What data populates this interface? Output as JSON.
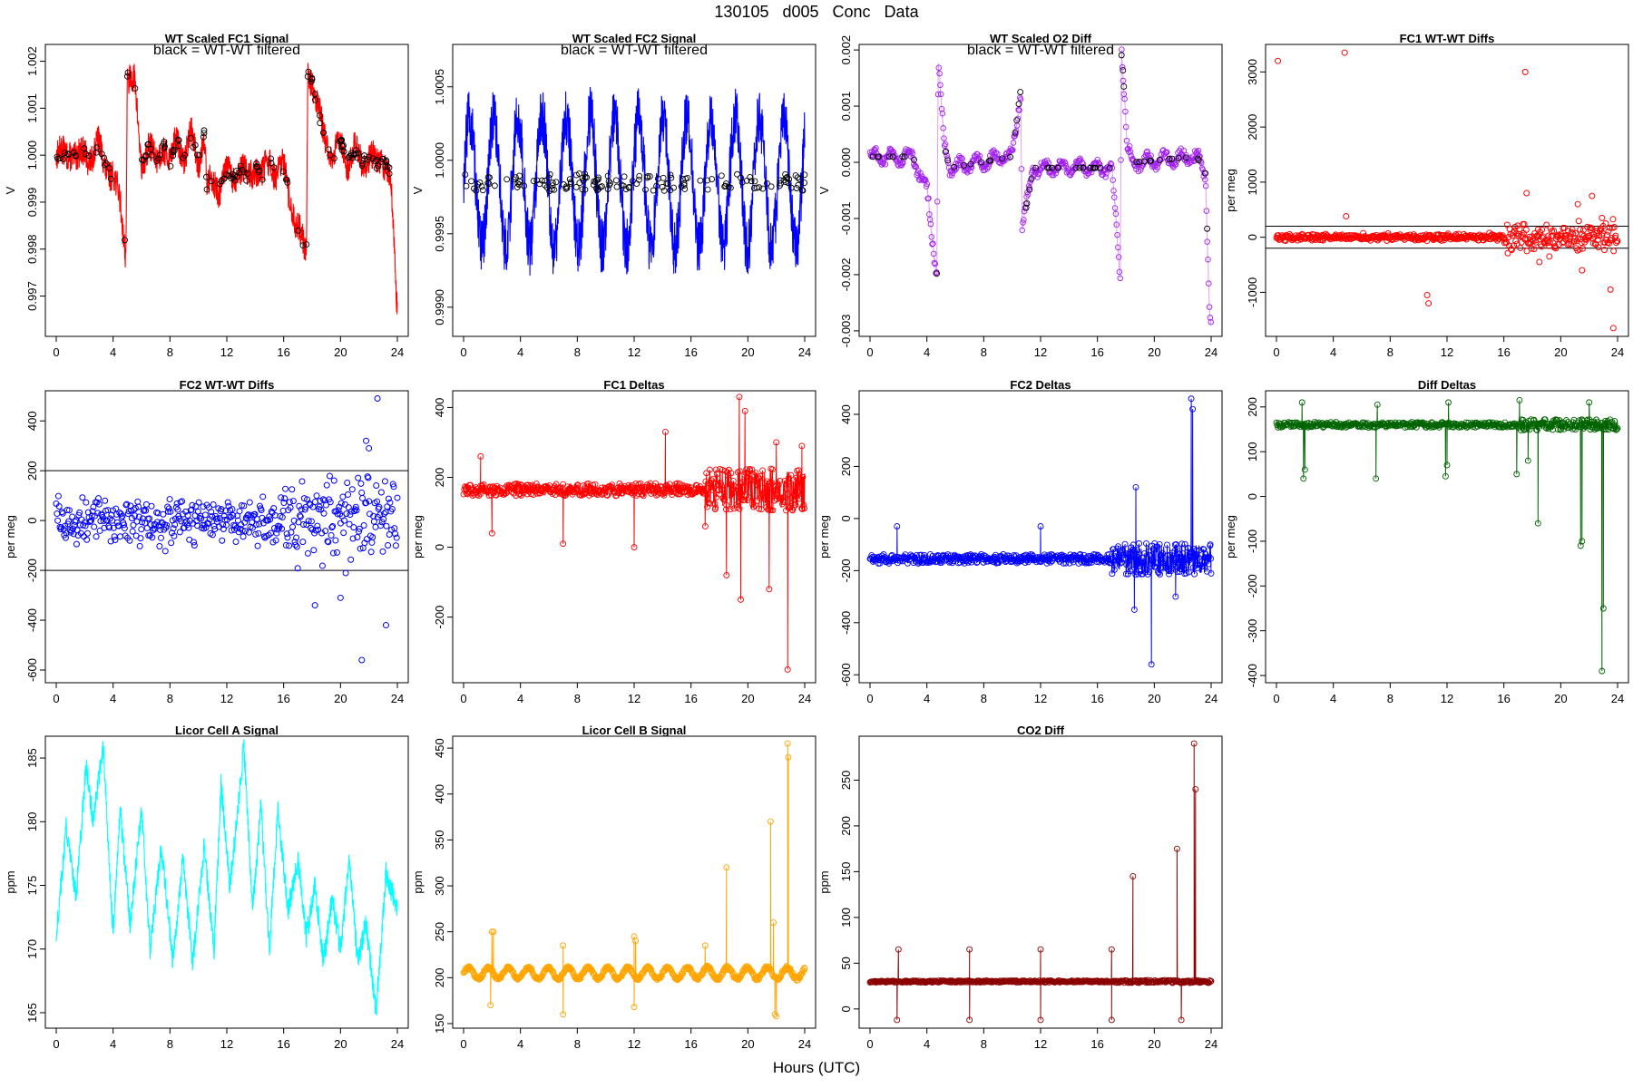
{
  "header": {
    "title": "130105    d005    Conc Data"
  },
  "footer": {
    "xlabel": "Hours (UTC)"
  },
  "chart_data": [
    {
      "type": "line",
      "title": "WT Scaled FC1 Signal",
      "annotation": "black = WT-WT filtered",
      "ylabel": "V",
      "xlim": [
        0,
        24
      ],
      "ylim": [
        0.9962,
        1.0023
      ],
      "xticks": [
        0,
        4,
        8,
        12,
        16,
        20,
        24
      ],
      "yticks": [
        0.997,
        0.998,
        0.999,
        1.0,
        1.001,
        1.002
      ],
      "ytick_labels": [
        "0.997",
        "0.998",
        "0.999",
        "1.000",
        "1.001",
        "1.002"
      ],
      "color": "#ff0000",
      "style": "dense",
      "marker_color": "#000000",
      "key_x": [
        0,
        0.5,
        1,
        1.5,
        2,
        2.5,
        3,
        3.5,
        4,
        4.5,
        4.9,
        5.0,
        5.5,
        6,
        6.5,
        7,
        7.5,
        8,
        8.5,
        9,
        9.5,
        10,
        10.4,
        10.6,
        11,
        11.5,
        12,
        12.5,
        13,
        13.5,
        14,
        14.5,
        15,
        15.5,
        16,
        16.5,
        17,
        17.6,
        17.7,
        18,
        18.5,
        19,
        19.5,
        20,
        20.5,
        21,
        21.5,
        22,
        22.5,
        23,
        23.5,
        23.8,
        24
      ],
      "key_y": [
        0.99995,
        1.0,
        1.00012,
        0.99985,
        1.0001,
        0.99995,
        1.0002,
        0.9998,
        0.9995,
        0.999,
        0.99795,
        1.0017,
        1.0015,
        0.9998,
        1.0002,
        0.9998,
        1.0003,
        0.9998,
        1.0004,
        0.9999,
        1.0004,
        0.9999,
        1.0005,
        0.9992,
        0.9995,
        0.9993,
        0.9996,
        0.9995,
        0.9997,
        0.9995,
        0.9998,
        0.9995,
        0.9999,
        0.9996,
        0.9997,
        0.999,
        0.9984,
        0.9979,
        1.0019,
        1.0016,
        1.0008,
        1.0003,
        0.9999,
        1.0003,
        0.9999,
        1.0001,
        0.99985,
        1.0,
        0.9998,
        0.99995,
        0.9996,
        0.9978,
        0.9966
      ],
      "noise": 0.00032,
      "wave_amp": 0.00015,
      "wave_period": 1.3
    },
    {
      "type": "line",
      "title": "WT Scaled FC2 Signal",
      "annotation": "black = WT-WT filtered",
      "ylabel": "V",
      "xlim": [
        0,
        24
      ],
      "ylim": [
        0.99882,
        1.00077
      ],
      "xticks": [
        0,
        4,
        8,
        12,
        16,
        20,
        24
      ],
      "yticks": [
        0.999,
        0.9995,
        1.0,
        1.0005
      ],
      "ytick_labels": [
        "0.9990",
        "0.9995",
        "1.0000",
        "1.0005"
      ],
      "color": "#0000ff",
      "style": "dense",
      "marker_color": "#000000",
      "key_x": [
        0,
        24
      ],
      "key_y": [
        0.99985,
        0.99985
      ],
      "noise": 0.0002,
      "wave_amp": 0.00045,
      "wave_period": 1.7
    },
    {
      "type": "line",
      "title": "WT Scaled O2 Diff",
      "annotation": "black = WT-WT filtered",
      "ylabel": "V",
      "xlim": [
        0,
        24
      ],
      "ylim": [
        -0.00305,
        0.00205
      ],
      "xticks": [
        0,
        4,
        8,
        12,
        16,
        20,
        24
      ],
      "yticks": [
        -0.003,
        -0.002,
        -0.001,
        0.0,
        0.001,
        0.002
      ],
      "ytick_labels": [
        "-0.003",
        "-0.002",
        "-0.001",
        "0.000",
        "0.001",
        "0.002"
      ],
      "color": "#a020f0",
      "style": "markers",
      "marker_color": "#a020f0",
      "key_x": [
        0,
        3,
        4,
        4.7,
        4.8,
        5.2,
        5.6,
        10,
        10.6,
        10.7,
        11.5,
        17,
        17.6,
        17.7,
        18.1,
        18.5,
        23,
        23.6,
        23.9,
        24
      ],
      "key_y": [
        0.0001,
        0.0001,
        -0.0005,
        -0.002,
        0.0018,
        0.0003,
        -0.0001,
        0.0001,
        0.0013,
        -0.0012,
        -0.0001,
        -0.0001,
        -0.002,
        0.0021,
        0.0002,
        0.0,
        0.0001,
        -0.0002,
        -0.0027,
        -0.0029
      ],
      "noise": 8e-05,
      "wave_amp": 0.0001,
      "wave_period": 1.2
    },
    {
      "type": "scatter",
      "title": "FC1 WT-WT Diffs",
      "ylabel": "per meg",
      "xlim": [
        0,
        24
      ],
      "ylim": [
        -1750,
        3450
      ],
      "xticks": [
        0,
        4,
        8,
        12,
        16,
        20,
        24
      ],
      "yticks": [
        -1000,
        0,
        1000,
        2000,
        3000
      ],
      "ytick_labels": [
        "-1000",
        "0",
        "1000",
        "2000",
        "3000"
      ],
      "hlines": [
        200,
        -200
      ],
      "color": "#ff0000",
      "style": "scatter",
      "n_points": 520,
      "base": 0,
      "spread": 45,
      "spread_late": 200,
      "outliers_x": [
        0.1,
        4.8,
        4.9,
        10.6,
        10.7,
        17.5,
        17.6,
        21.2,
        22.2,
        22.9,
        23.5,
        23.7,
        18.5,
        19.2,
        21.5
      ],
      "outliers_y": [
        3200,
        3350,
        380,
        -1050,
        -1200,
        3000,
        800,
        600,
        750,
        350,
        -950,
        -1650,
        -450,
        -350,
        -600
      ]
    },
    {
      "type": "scatter",
      "title": "FC2 WT-WT Diffs",
      "ylabel": "per meg",
      "xlim": [
        0,
        24
      ],
      "ylim": [
        -640,
        510
      ],
      "xticks": [
        0,
        4,
        8,
        12,
        16,
        20,
        24
      ],
      "yticks": [
        -600,
        -400,
        -200,
        0,
        200,
        400
      ],
      "ytick_labels": [
        "-600",
        "-400",
        "-200",
        "0",
        "200",
        "400"
      ],
      "hlines": [
        200,
        -200
      ],
      "color": "#0000ff",
      "style": "scatter",
      "n_points": 470,
      "base": 0,
      "spread": 70,
      "spread_late": 140,
      "outliers_x": [
        22.6,
        21.5,
        22.0,
        20.0,
        23.2,
        21.8,
        18.2
      ],
      "outliers_y": [
        490,
        -560,
        290,
        -310,
        -420,
        320,
        -340
      ]
    },
    {
      "type": "line",
      "title": "FC1 Deltas",
      "ylabel": "per meg",
      "xlim": [
        0,
        24
      ],
      "ylim": [
        -380,
        440
      ],
      "xticks": [
        0,
        4,
        8,
        12,
        16,
        20,
        24
      ],
      "yticks": [
        -200,
        0,
        200,
        400
      ],
      "ytick_labels": [
        "-200",
        "0",
        "200",
        "400"
      ],
      "color": "#ff0000",
      "style": "linemarkers",
      "n_points": 900,
      "base": 165,
      "spread": 18,
      "spread_late": 60,
      "dips_x": [
        2.0,
        7.0,
        12.0,
        17.0,
        18.5,
        19.5,
        21.5,
        22.8
      ],
      "dips_y": [
        40,
        10,
        0,
        60,
        -80,
        -150,
        -120,
        -350
      ],
      "spikes_x": [
        1.2,
        14.2,
        19.4,
        19.8,
        22.0,
        23.8
      ],
      "spikes_y": [
        260,
        330,
        430,
        390,
        300,
        290
      ]
    },
    {
      "type": "line",
      "title": "FC2 Deltas",
      "ylabel": "per meg",
      "xlim": [
        0,
        24
      ],
      "ylim": [
        -620,
        480
      ],
      "xticks": [
        0,
        4,
        8,
        12,
        16,
        20,
        24
      ],
      "yticks": [
        -600,
        -400,
        -200,
        0,
        200,
        400
      ],
      "ytick_labels": [
        "-600",
        "-400",
        "-200",
        "0",
        "200",
        "400"
      ],
      "color": "#0000ff",
      "style": "linemarkers",
      "n_points": 900,
      "base": -155,
      "spread": 18,
      "spread_late": 60,
      "dips_x": [
        19.8,
        18.6,
        21.5
      ],
      "dips_y": [
        -560,
        -350,
        -300
      ],
      "spikes_x": [
        1.9,
        12.0,
        18.7,
        22.6,
        22.7
      ],
      "spikes_y": [
        -30,
        -30,
        120,
        460,
        420
      ]
    },
    {
      "type": "line",
      "title": "Diff Deltas",
      "ylabel": "per meg",
      "xlim": [
        0,
        24
      ],
      "ylim": [
        -410,
        230
      ],
      "xticks": [
        0,
        4,
        8,
        12,
        16,
        20,
        24
      ],
      "yticks": [
        -400,
        -300,
        -200,
        -100,
        0,
        100,
        200
      ],
      "ytick_labels": [
        "-400",
        "-300",
        "-200",
        "-100",
        "0",
        "100",
        "200"
      ],
      "color": "#006400",
      "style": "linemarkers",
      "n_points": 900,
      "base": 160,
      "spread": 6,
      "spread_late": 12,
      "dips_x": [
        1.9,
        2.0,
        7.0,
        11.9,
        12.0,
        16.9,
        17.7,
        18.4,
        21.4,
        21.5,
        22.9,
        23.0
      ],
      "dips_y": [
        40,
        60,
        40,
        45,
        70,
        50,
        80,
        -60,
        -110,
        -100,
        -390,
        -250
      ],
      "spikes_x": [
        1.8,
        7.1,
        12.1,
        17.1,
        22.0
      ],
      "spikes_y": [
        210,
        205,
        210,
        215,
        210
      ]
    },
    {
      "type": "line",
      "title": "Licor Cell A Signal",
      "ylabel": "ppm",
      "xlim": [
        0,
        24
      ],
      "ylim": [
        164,
        186.5
      ],
      "xticks": [
        0,
        4,
        8,
        12,
        16,
        20,
        24
      ],
      "yticks": [
        165,
        170,
        175,
        180,
        185
      ],
      "ytick_labels": [
        "165",
        "170",
        "175",
        "180",
        "185"
      ],
      "color": "#00ffff",
      "style": "dense",
      "key_x": [
        0,
        0.7,
        1.4,
        2.1,
        2.6,
        3.3,
        4.0,
        4.5,
        5.2,
        6.0,
        6.6,
        7.4,
        8.2,
        8.9,
        9.6,
        10.4,
        11.1,
        11.6,
        12.2,
        12.7,
        13.2,
        13.8,
        14.4,
        15.0,
        15.6,
        16.3,
        17.0,
        17.6,
        18.2,
        18.8,
        19.4,
        20.0,
        20.6,
        21.2,
        21.8,
        22.5,
        23.2,
        24
      ],
      "key_y": [
        171,
        179.5,
        174,
        184.5,
        180,
        186,
        171,
        181,
        172,
        181,
        170,
        178,
        169,
        177,
        169,
        178,
        170,
        183,
        175,
        180,
        186,
        173,
        181,
        170,
        181,
        173,
        177,
        171,
        175,
        169,
        174,
        170,
        177,
        169,
        172,
        165,
        176,
        173
      ],
      "noise": 0.9,
      "wave_amp": 0,
      "wave_period": 1
    },
    {
      "type": "line",
      "title": "Licor Cell B Signal",
      "ylabel": "ppm",
      "xlim": [
        0,
        24
      ],
      "ylim": [
        148,
        460
      ],
      "xticks": [
        0,
        4,
        8,
        12,
        16,
        20,
        24
      ],
      "yticks": [
        150,
        200,
        250,
        300,
        350,
        400,
        450
      ],
      "ytick_labels": [
        "150",
        "200",
        "250",
        "300",
        "350",
        "400",
        "450"
      ],
      "color": "#ffa500",
      "style": "linemarkers",
      "n_points": 900,
      "base": 205,
      "spread": 1.5,
      "spread_late": 2,
      "wave_amp": 6,
      "wave_period": 1.4,
      "dips_x": [
        1.9,
        7.0,
        12.0,
        21.9,
        22.0
      ],
      "dips_y": [
        170,
        160,
        168,
        160,
        158
      ],
      "spikes_x": [
        2.0,
        2.1,
        7.0,
        12.0,
        12.1,
        17.0,
        18.5,
        21.6,
        21.8,
        22.8,
        22.85
      ],
      "spikes_y": [
        250,
        250,
        235,
        245,
        240,
        235,
        320,
        370,
        260,
        455,
        440
      ]
    },
    {
      "type": "line",
      "title": "CO2 Diff",
      "ylabel": "ppm",
      "xlim": [
        0,
        24
      ],
      "ylim": [
        -18,
        295
      ],
      "xticks": [
        0,
        4,
        8,
        12,
        16,
        20,
        24
      ],
      "yticks": [
        0,
        50,
        100,
        150,
        200,
        250
      ],
      "ytick_labels": [
        "0",
        "50",
        "100",
        "150",
        "200",
        "250"
      ],
      "color": "#8b0000",
      "style": "linemarkers",
      "n_points": 900,
      "base": 30,
      "spread": 1,
      "spread_late": 1.5,
      "dips_x": [
        1.9,
        7.0,
        12.0,
        17.0,
        21.9
      ],
      "dips_y": [
        -12,
        -12,
        -12,
        -12,
        -12
      ],
      "spikes_x": [
        2.0,
        7.0,
        12.0,
        17.0,
        18.5,
        21.6,
        22.8,
        22.9
      ],
      "spikes_y": [
        65,
        65,
        65,
        65,
        145,
        175,
        290,
        240
      ]
    }
  ]
}
